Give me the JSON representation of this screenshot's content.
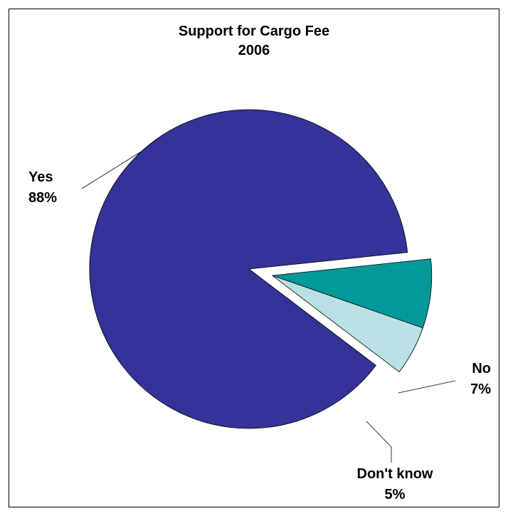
{
  "chart_data": {
    "type": "pie",
    "title": "Support for Cargo Fee",
    "subtitle": "2006",
    "categories": [
      "Yes",
      "No",
      "Don't know"
    ],
    "values": [
      88,
      7,
      5
    ],
    "value_labels": [
      "88%",
      "7%",
      "5%"
    ],
    "colors": [
      "#333399",
      "#009999",
      "#B9E0E5"
    ],
    "legend": "none"
  }
}
